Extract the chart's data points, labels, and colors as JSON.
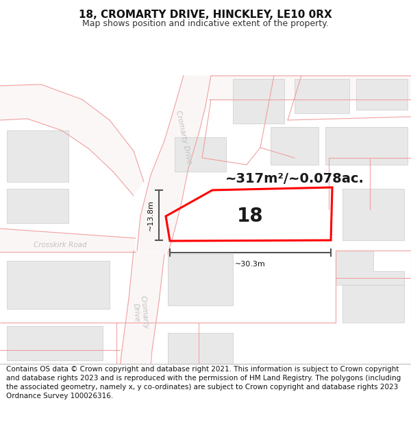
{
  "title": "18, CROMARTY DRIVE, HINCKLEY, LE10 0RX",
  "subtitle": "Map shows position and indicative extent of the property.",
  "footer": "Contains OS data © Crown copyright and database right 2021. This information is subject to Crown copyright and database rights 2023 and is reproduced with the permission of HM Land Registry. The polygons (including the associated geometry, namely x, y co-ordinates) are subject to Crown copyright and database rights 2023 Ordnance Survey 100026316.",
  "area_label": "~317m²/~0.078ac.",
  "number_label": "18",
  "dim_width": "~30.3m",
  "dim_height": "~13.8m",
  "road_line_color": "#f0a0a0",
  "building_fill": "#e8e8e8",
  "building_edge": "#cccccc",
  "highlight_color": "#ff0000",
  "dim_color": "#555555",
  "road_label_color": "#bbbbbb",
  "title_fontsize": 11,
  "subtitle_fontsize": 9,
  "footer_fontsize": 7.5,
  "area_fontsize": 14,
  "number_fontsize": 20
}
